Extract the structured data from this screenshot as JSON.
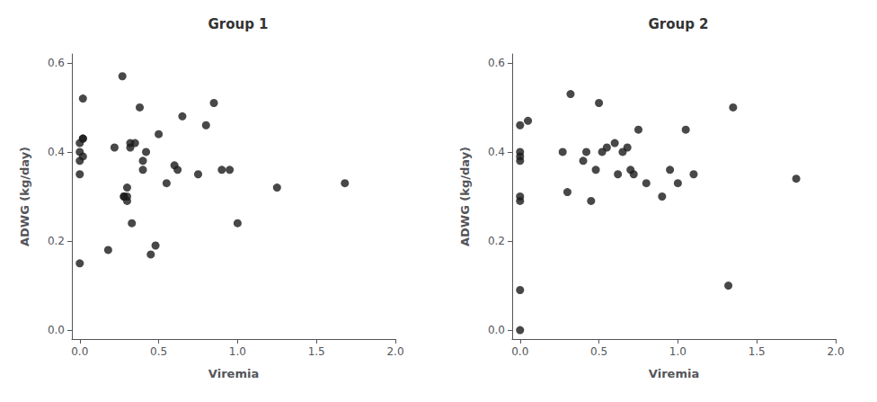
{
  "chart_data": [
    {
      "type": "scatter",
      "title": "Group 1",
      "xlabel": "Viremia",
      "ylabel": "ADWG (kg/day)",
      "color": "#1a1a1a",
      "grid": false,
      "xlim": [
        -0.05,
        2.0
      ],
      "ylim": [
        -0.02,
        0.62
      ],
      "xticks": [
        {
          "value": 0.0,
          "label": "0.0"
        },
        0.5,
        {
          "value": 1.0,
          "label": "1.0"
        },
        1.5,
        {
          "value": 2.0,
          "label": "2.0"
        }
      ],
      "yticks": [
        {
          "value": 0.0,
          "label": "0.0"
        },
        0.2,
        0.4,
        0.6
      ],
      "x": [
        0.0,
        0.0,
        0.0,
        0.0,
        0.0,
        0.02,
        0.02,
        0.02,
        0.02,
        0.18,
        0.22,
        0.27,
        0.28,
        0.28,
        0.3,
        0.3,
        0.3,
        0.32,
        0.32,
        0.33,
        0.35,
        0.38,
        0.4,
        0.4,
        0.42,
        0.45,
        0.48,
        0.5,
        0.55,
        0.6,
        0.62,
        0.65,
        0.75,
        0.8,
        0.85,
        0.9,
        0.95,
        1.0,
        1.25,
        1.68
      ],
      "values": [
        0.15,
        0.35,
        0.38,
        0.4,
        0.42,
        0.52,
        0.39,
        0.43,
        0.43,
        0.18,
        0.41,
        0.57,
        0.3,
        0.3,
        0.29,
        0.3,
        0.32,
        0.41,
        0.42,
        0.24,
        0.42,
        0.5,
        0.36,
        0.38,
        0.4,
        0.17,
        0.19,
        0.44,
        0.33,
        0.37,
        0.36,
        0.48,
        0.35,
        0.46,
        0.51,
        0.36,
        0.36,
        0.24,
        0.32,
        0.33
      ]
    },
    {
      "type": "scatter",
      "title": "Group 2",
      "xlabel": "Viremia",
      "ylabel": "ADWG (kg/day)",
      "color": "#1a1a1a",
      "grid": false,
      "xlim": [
        -0.05,
        2.0
      ],
      "ylim": [
        -0.02,
        0.62
      ],
      "xticks": [
        {
          "value": 0.0,
          "label": "0.0"
        },
        0.5,
        {
          "value": 1.0,
          "label": "1.0"
        },
        1.5,
        {
          "value": 2.0,
          "label": "2.0"
        }
      ],
      "yticks": [
        {
          "value": 0.0,
          "label": "0.0"
        },
        0.2,
        0.4,
        0.6
      ],
      "x": [
        0.0,
        0.0,
        0.0,
        0.0,
        0.0,
        0.0,
        0.0,
        0.0,
        0.05,
        0.27,
        0.3,
        0.32,
        0.4,
        0.42,
        0.45,
        0.48,
        0.5,
        0.52,
        0.55,
        0.6,
        0.62,
        0.65,
        0.68,
        0.7,
        0.72,
        0.75,
        0.8,
        0.9,
        0.95,
        1.0,
        1.05,
        1.1,
        1.32,
        1.35,
        1.75
      ],
      "values": [
        0.0,
        0.09,
        0.29,
        0.3,
        0.38,
        0.39,
        0.4,
        0.46,
        0.47,
        0.4,
        0.31,
        0.53,
        0.38,
        0.4,
        0.29,
        0.36,
        0.51,
        0.4,
        0.41,
        0.42,
        0.35,
        0.4,
        0.41,
        0.36,
        0.35,
        0.45,
        0.33,
        0.3,
        0.36,
        0.33,
        0.45,
        0.35,
        0.1,
        0.5,
        0.34
      ]
    }
  ]
}
